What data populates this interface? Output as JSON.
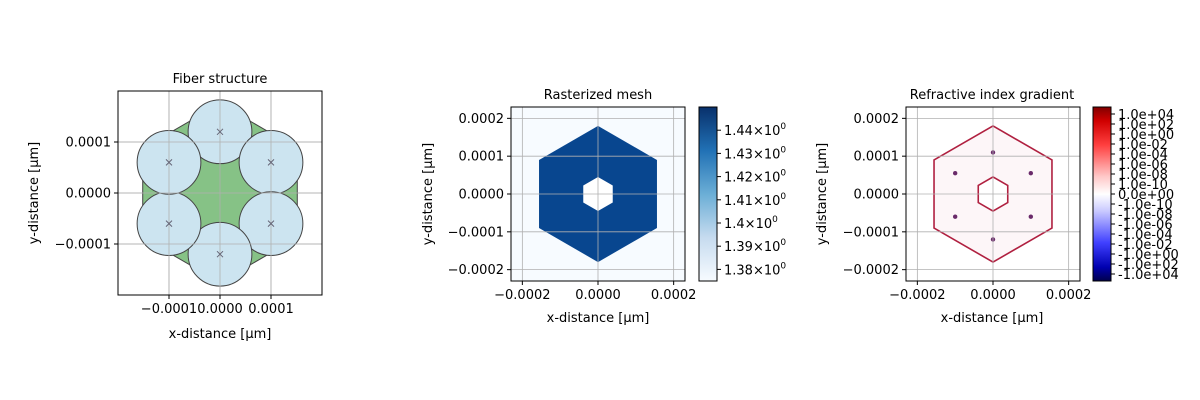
{
  "chart_data": [
    {
      "type": "scatter",
      "title": "Fiber structure",
      "xlabel": "x-distance [μm]",
      "ylabel": "y-distance [μm]",
      "xlim": [
        -0.0002,
        0.0002
      ],
      "ylim": [
        -0.0002,
        0.0002
      ],
      "xticks": [
        {
          "v": -0.0001,
          "label": "−0.0001"
        },
        {
          "v": 0,
          "label": "0.0000"
        },
        {
          "v": 0.0001,
          "label": "0.0001"
        }
      ],
      "yticks": [
        {
          "v": -0.0001,
          "label": "−0.0001"
        },
        {
          "v": 0,
          "label": "0.0000"
        },
        {
          "v": 0.0001,
          "label": "0.0001"
        }
      ],
      "grid": true,
      "cladding_color": "#7fbf7f",
      "hole_color": "#cce4f0",
      "hole_radius": 6.25e-05,
      "hexagon_outer_radius": 0.000175,
      "holes": [
        {
          "x": 0,
          "y": 0.00012
        },
        {
          "x": 0.0001,
          "y": 6e-05
        },
        {
          "x": 0.0001,
          "y": -6e-05
        },
        {
          "x": 0,
          "y": -0.00012
        },
        {
          "x": -0.0001,
          "y": -6e-05
        },
        {
          "x": -0.0001,
          "y": 6e-05
        }
      ]
    },
    {
      "type": "heatmap",
      "title": "Rasterized mesh",
      "xlabel": "x-distance [μm]",
      "ylabel": "y-distance [μm]",
      "xlim": [
        -0.00023,
        0.00023
      ],
      "ylim": [
        -0.00023,
        0.00023
      ],
      "xticks": [
        {
          "v": -0.0002,
          "label": "−0.0002"
        },
        {
          "v": 0,
          "label": "0.0000"
        },
        {
          "v": 0.0002,
          "label": "0.0002"
        }
      ],
      "yticks": [
        {
          "v": -0.0002,
          "label": "−0.0002"
        },
        {
          "v": -0.0001,
          "label": "−0.0001"
        },
        {
          "v": 0,
          "label": "0.0000"
        },
        {
          "v": 0.0001,
          "label": "0.0001"
        },
        {
          "v": 0.0002,
          "label": "0.0002"
        }
      ],
      "grid": true,
      "background_value": 1.375,
      "cladding_value": 1.445,
      "hexagon_outer_radius": 0.00018,
      "inner_hole_radius": 4.5e-05,
      "colorbar": {
        "cmap": "Blues",
        "range": [
          1.375,
          1.45
        ],
        "ticks": [
          {
            "v": 1.44,
            "base": "1.44",
            "exp": "0"
          },
          {
            "v": 1.43,
            "base": "1.43",
            "exp": "0"
          },
          {
            "v": 1.42,
            "base": "1.42",
            "exp": "0"
          },
          {
            "v": 1.41,
            "base": "1.41",
            "exp": "0"
          },
          {
            "v": 1.4,
            "base": "1.4",
            "exp": "0"
          },
          {
            "v": 1.39,
            "base": "1.39",
            "exp": "0"
          },
          {
            "v": 1.38,
            "base": "1.38",
            "exp": "0"
          }
        ]
      }
    },
    {
      "type": "heatmap",
      "title": "Refractive index gradient",
      "xlabel": "x-distance [μm]",
      "ylabel": "y-distance [μm]",
      "xlim": [
        -0.00023,
        0.00023
      ],
      "ylim": [
        -0.00023,
        0.00023
      ],
      "xticks": [
        {
          "v": -0.0002,
          "label": "−0.0002"
        },
        {
          "v": 0,
          "label": "0.0000"
        },
        {
          "v": 0.0002,
          "label": "0.0002"
        }
      ],
      "yticks": [
        {
          "v": -0.0002,
          "label": "−0.0002"
        },
        {
          "v": -0.0001,
          "label": "−0.0001"
        },
        {
          "v": 0,
          "label": "0.0000"
        },
        {
          "v": 0.0001,
          "label": "0.0001"
        },
        {
          "v": 0.0002,
          "label": "0.0002"
        }
      ],
      "grid": true,
      "hexagon_outer_radius": 0.00018,
      "inner_hole_radius": 4.5e-05,
      "edge_color_outer": "#b02040",
      "edge_color_inner": "#3040b0",
      "dots": [
        {
          "x": 0,
          "y": 0.00011
        },
        {
          "x": 0.0001,
          "y": 5.5e-05
        },
        {
          "x": 0.0001,
          "y": -6e-05
        },
        {
          "x": 0,
          "y": -0.00012
        },
        {
          "x": -0.0001,
          "y": -6e-05
        },
        {
          "x": -0.0001,
          "y": 5.5e-05
        }
      ],
      "colorbar": {
        "cmap": "seismic",
        "ticks": [
          "1.0e+04",
          "1.0e+02",
          "1.0e+00",
          "1.0e-02",
          "1.0e-04",
          "1.0e-06",
          "1.0e-08",
          "1.0e-10",
          "0.0e+00",
          "-1.0e-10",
          "-1.0e-08",
          "-1.0e-06",
          "-1.0e-04",
          "-1.0e-02",
          "-1.0e+00",
          "-1.0e+02",
          "-1.0e+04"
        ]
      }
    }
  ]
}
